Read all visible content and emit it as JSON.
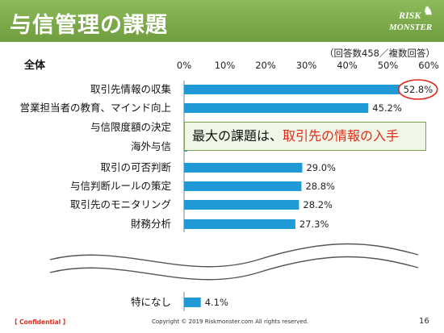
{
  "slide": {
    "title": "与信管理の課題",
    "logo_line1": "RISK",
    "logo_line2": "MONSTER",
    "note": "（回答数458／複数回答）",
    "callout_prefix": "最大の課題は、",
    "callout_highlight": "取引先の情報の入手",
    "confidential": "【 Confidential 】",
    "copyright": "Copyright © 2019 Riskmonster.com All rights reserved.",
    "page_number": "16"
  },
  "colors": {
    "header_green": "#7aa84a",
    "bar_blue": "#1f9ad6",
    "highlight_red": "#e02a1b",
    "callout_bg": "#f1f7e6"
  },
  "chart_data": {
    "type": "bar",
    "orientation": "horizontal",
    "group_label": "全体",
    "categories": [
      "取引先情報の収集",
      "営業担当者の教育、マインド向上",
      "与信限度額の決定",
      "海外与信",
      "取引の可否判断",
      "与信判断ルールの策定",
      "取引先のモニタリング",
      "財務分析",
      "特になし"
    ],
    "values": [
      52.8,
      45.2,
      null,
      null,
      29.0,
      28.8,
      28.2,
      27.3,
      4.1
    ],
    "value_labels": [
      "52.8%",
      "45.2%",
      "",
      "",
      "29.0%",
      "28.8%",
      "28.2%",
      "27.3%",
      "4.1%"
    ],
    "xlim": [
      0,
      60
    ],
    "x_ticks": [
      "0%",
      "10%",
      "20%",
      "30%",
      "40%",
      "50%",
      "60%"
    ],
    "gridlines": false,
    "axis_break_before_last": true,
    "highlighted_index": 0
  }
}
